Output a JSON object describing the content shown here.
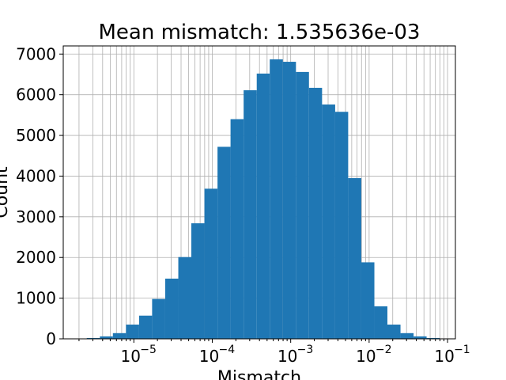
{
  "chart_data": {
    "type": "bar",
    "title": "Mean mismatch: 1.535636e-03",
    "xlabel": "Mismatch",
    "ylabel": "Count",
    "x_scale": "log",
    "xlim": [
      1.259e-06,
      0.1259
    ],
    "ylim": [
      0,
      7200
    ],
    "grid": true,
    "bar_color": "#1f77b4",
    "bin_edges_log10": [
      -5.6,
      -5.433,
      -5.267,
      -5.1,
      -4.933,
      -4.767,
      -4.6,
      -4.433,
      -4.267,
      -4.1,
      -3.933,
      -3.767,
      -3.6,
      -3.433,
      -3.267,
      -3.1,
      -2.933,
      -2.767,
      -2.6,
      -2.433,
      -2.267,
      -2.1,
      -1.933,
      -1.767,
      -1.6,
      -1.433,
      -1.267,
      -1.1
    ],
    "counts": [
      20,
      60,
      140,
      350,
      570,
      980,
      1480,
      2010,
      2840,
      3690,
      4720,
      5400,
      6110,
      6520,
      6870,
      6810,
      6560,
      6170,
      5760,
      5580,
      3950,
      1880,
      800,
      350,
      140,
      60,
      20
    ],
    "x_ticks": [
      {
        "value": 1e-05,
        "label": "10",
        "exp": "−5"
      },
      {
        "value": 0.0001,
        "label": "10",
        "exp": "−4"
      },
      {
        "value": 0.001,
        "label": "10",
        "exp": "−3"
      },
      {
        "value": 0.01,
        "label": "10",
        "exp": "−2"
      },
      {
        "value": 0.1,
        "label": "10",
        "exp": "−1"
      }
    ],
    "y_ticks": [
      {
        "value": 0,
        "label": "0"
      },
      {
        "value": 1000,
        "label": "1000"
      },
      {
        "value": 2000,
        "label": "2000"
      },
      {
        "value": 3000,
        "label": "3000"
      },
      {
        "value": 4000,
        "label": "4000"
      },
      {
        "value": 5000,
        "label": "5000"
      },
      {
        "value": 6000,
        "label": "6000"
      },
      {
        "value": 7000,
        "label": "7000"
      }
    ]
  }
}
